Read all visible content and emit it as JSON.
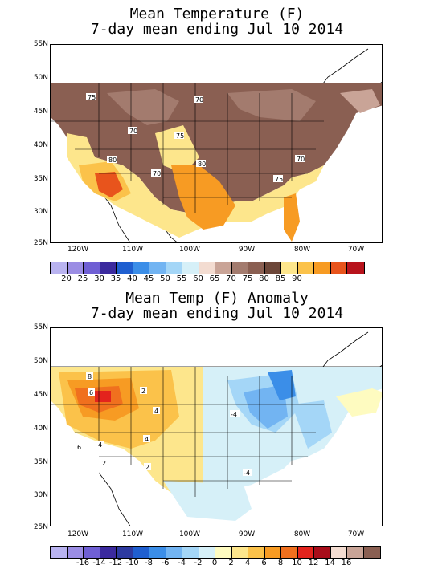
{
  "top": {
    "title_line1": "Mean Temperature (F)",
    "title_line2": "7-day mean ending Jul 10 2014",
    "lat_labels": [
      "55N",
      "50N",
      "45N",
      "40N",
      "35N",
      "30N",
      "25N"
    ],
    "lon_labels": [
      "120W",
      "110W",
      "100W",
      "90W",
      "80W",
      "70W"
    ],
    "contour_labels": [
      "75",
      "70",
      "70",
      "75",
      "80",
      "70",
      "80",
      "70",
      "75"
    ],
    "colorbar": {
      "colors": [
        "#b9b3f0",
        "#9b8de4",
        "#6f5fd4",
        "#3b2a9e",
        "#1f5fd0",
        "#3b8ee8",
        "#72b4f2",
        "#a4d6f7",
        "#d6f0f8",
        "#f3dcd1",
        "#c9a497",
        "#a37b6e",
        "#8a5f52",
        "#6c4639",
        "#fde68c",
        "#fbc24a",
        "#f79b23",
        "#e8541c",
        "#b8131c"
      ],
      "tick_labels": [
        "20",
        "25",
        "30",
        "35",
        "40",
        "45",
        "50",
        "55",
        "60",
        "65",
        "70",
        "75",
        "80",
        "85",
        "90"
      ]
    }
  },
  "bottom": {
    "title_line1": "Mean Temp (F) Anomaly",
    "title_line2": "7-day mean ending Jul 10 2014",
    "lat_labels": [
      "55N",
      "50N",
      "45N",
      "40N",
      "35N",
      "30N",
      "25N"
    ],
    "lon_labels": [
      "120W",
      "110W",
      "100W",
      "90W",
      "80W",
      "70W"
    ],
    "contour_labels": [
      "8",
      "6",
      "2",
      "4",
      "6",
      "4",
      "4",
      "2",
      "2",
      "-4",
      "-4"
    ],
    "colorbar": {
      "colors": [
        "#b9b3f0",
        "#9b8de4",
        "#6f5fd4",
        "#3b2a9e",
        "#2d3aa0",
        "#1f5fd0",
        "#3b8ee8",
        "#72b4f2",
        "#a4d6f7",
        "#d6f0f8",
        "#fefbc0",
        "#fde68c",
        "#fbc24a",
        "#f79b23",
        "#f0701e",
        "#e3231d",
        "#a80d1a",
        "#f3dcd1",
        "#c9a497",
        "#8a5f52"
      ],
      "tick_labels": [
        "-16",
        "-14",
        "-12",
        "-10",
        "-8",
        "-6",
        "-4",
        "-2",
        "0",
        "2",
        "4",
        "6",
        "8",
        "10",
        "12",
        "14",
        "16"
      ]
    }
  }
}
